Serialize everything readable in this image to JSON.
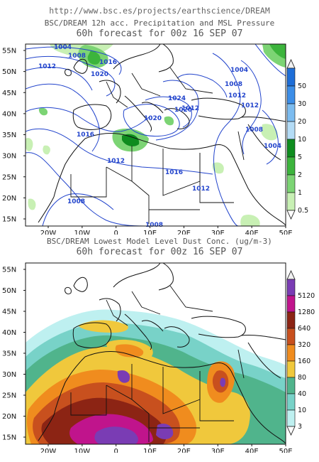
{
  "header": {
    "url": "http://www.bsc.es/projects/earthscience/DREAM"
  },
  "panel_top": {
    "title_line1": "BSC/DREAM 12h acc. Precipitation and MSL Pressure",
    "title_line2": "60h forecast for 00z 16 SEP 07",
    "lat_labels": [
      "55N",
      "50N",
      "45N",
      "40N",
      "35N",
      "30N",
      "25N",
      "20N",
      "15N"
    ],
    "lon_labels": [
      "20W",
      "10W",
      "0",
      "10E",
      "20E",
      "30E",
      "40E",
      "50E"
    ],
    "isobar_labels": [
      "1004",
      "1008",
      "1012",
      "1016",
      "1020",
      "1004",
      "1008",
      "1012",
      "1024",
      "1020",
      "1020",
      "1016",
      "1012",
      "1016",
      "1012",
      "1008",
      "1008",
      "1004",
      "1012",
      "1012",
      "1008"
    ],
    "colorbar": {
      "labels": [
        "50",
        "30",
        "20",
        "10",
        "5",
        "2",
        "1",
        "0.5"
      ],
      "colors": [
        "#1e6ed8",
        "#3c8ee8",
        "#7cbcf0",
        "#b4dcf6",
        "#0e8c1e",
        "#3cb43c",
        "#7cd474",
        "#c8f0b4"
      ]
    }
  },
  "panel_bottom": {
    "title_line1": "BSC/DREAM Lowest Model Level Dust Conc. (ug/m-3)",
    "title_line2": "60h forecast for 00z 16 SEP 07",
    "lat_labels": [
      "55N",
      "50N",
      "45N",
      "40N",
      "35N",
      "30N",
      "25N",
      "20N",
      "15N"
    ],
    "lon_labels": [
      "20W",
      "10W",
      "0",
      "10E",
      "20E",
      "30E",
      "40E",
      "50E"
    ],
    "colorbar": {
      "labels": [
        "5120",
        "1280",
        "640",
        "320",
        "160",
        "80",
        "40",
        "10",
        "3"
      ],
      "colors": [
        "#7a3cb4",
        "#c0148c",
        "#8c2414",
        "#c8501e",
        "#f08c1e",
        "#f0c83c",
        "#50b48c",
        "#78d2c8",
        "#bef0f0"
      ]
    }
  }
}
